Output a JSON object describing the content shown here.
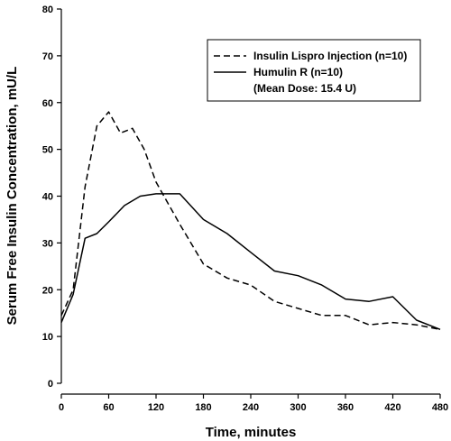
{
  "chart_data": {
    "type": "line",
    "xlabel": "Time, minutes",
    "ylabel": "Serum Free Insulin Concentration, mU/L",
    "xlim": [
      0,
      480
    ],
    "ylim": [
      0,
      80
    ],
    "x_ticks": [
      0,
      60,
      120,
      180,
      240,
      300,
      360,
      420,
      480
    ],
    "y_ticks": [
      0,
      10,
      20,
      30,
      40,
      50,
      60,
      70,
      80
    ],
    "grid": false,
    "legend_position": "top-right",
    "legend_note": "(Mean Dose: 15.4 U)",
    "series": [
      {
        "name": "Insulin Lispro Injection (n=10)",
        "style": "dashed",
        "x": [
          0,
          15,
          30,
          45,
          60,
          75,
          90,
          105,
          120,
          150,
          180,
          210,
          240,
          270,
          300,
          330,
          360,
          390,
          420,
          450,
          480
        ],
        "y": [
          14.5,
          20,
          42,
          55,
          58,
          53.5,
          54.5,
          50,
          43,
          34,
          25.5,
          22.5,
          21,
          17.5,
          16,
          14.5,
          14.5,
          12.5,
          13,
          12.5,
          11.5
        ]
      },
      {
        "name": "Humulin R (n=10)",
        "style": "solid",
        "x": [
          0,
          15,
          30,
          45,
          60,
          80,
          100,
          120,
          150,
          180,
          210,
          240,
          270,
          300,
          330,
          360,
          390,
          420,
          450,
          480
        ],
        "y": [
          13,
          19,
          31,
          32,
          34.5,
          38,
          40,
          40.5,
          40.5,
          35,
          32,
          28,
          24,
          23,
          21,
          18,
          17.5,
          18.5,
          13.5,
          11.5
        ]
      }
    ]
  }
}
